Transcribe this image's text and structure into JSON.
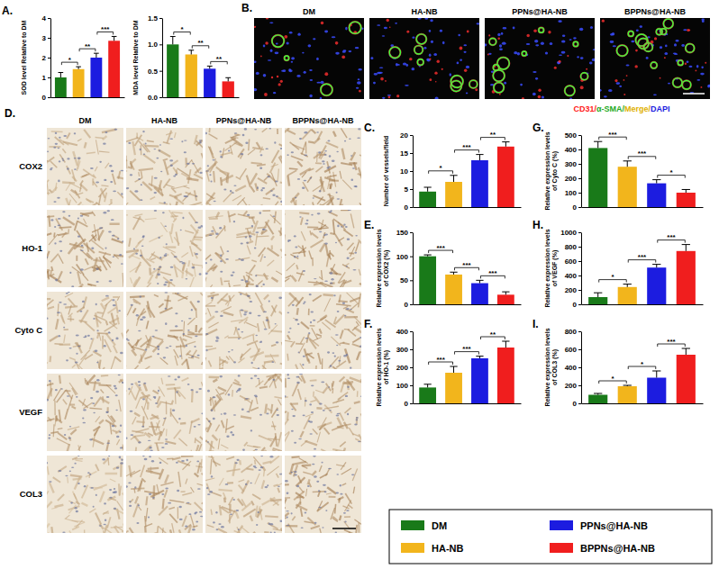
{
  "chart_data": [
    {
      "type": "bar",
      "panel": "A.",
      "y_label": "SOD level Relative to DM",
      "categories": [
        null,
        null,
        null,
        null
      ],
      "values": [
        1.0,
        1.42,
        2.0,
        2.85
      ],
      "errors": [
        0.25,
        0.12,
        0.22,
        0.22
      ],
      "colors": [
        "#197a19",
        "#f2b51c",
        "#1c1ce0",
        "#f01e1e"
      ],
      "ylim": [
        0,
        4
      ],
      "yticks": [
        0,
        1,
        2,
        3,
        4
      ],
      "tick_labels": "y",
      "annotations": [
        {
          "from": 0,
          "to": 1,
          "text": "*"
        },
        {
          "from": 1,
          "to": 2,
          "text": "**"
        },
        {
          "from": 2,
          "to": 3,
          "text": "***"
        }
      ]
    },
    {
      "type": "bar",
      "y_label": "MDA level Relative to DM",
      "categories": [
        null,
        null,
        null,
        null
      ],
      "values": [
        1.0,
        0.81,
        0.54,
        0.3
      ],
      "errors": [
        0.15,
        0.08,
        0.05,
        0.07
      ],
      "colors": [
        "#197a19",
        "#f2b51c",
        "#1c1ce0",
        "#f01e1e"
      ],
      "ylim": [
        0,
        1.5
      ],
      "yticks": [
        {
          "value": 0,
          "label": "0.0"
        },
        0.5,
        {
          "value": 1,
          "label": "1.0"
        },
        1.5
      ],
      "tick_labels": "y",
      "annotations": [
        {
          "from": 0,
          "to": 1,
          "text": "*"
        },
        {
          "from": 1,
          "to": 2,
          "text": "**"
        },
        {
          "from": 2,
          "to": 3,
          "text": "**"
        }
      ]
    },
    {
      "type": "bar",
      "panel": "C.",
      "y_label": "Number of vessels/field",
      "categories": [
        null,
        null,
        null,
        null
      ],
      "values": [
        4.3,
        7.0,
        13.0,
        16.8
      ],
      "errors": [
        1.2,
        1.8,
        1.6,
        1.3
      ],
      "colors": [
        "#197a19",
        "#f2b51c",
        "#1c1ce0",
        "#f01e1e"
      ],
      "ylim": [
        0,
        20
      ],
      "yticks": [
        0,
        5,
        10,
        15,
        20
      ],
      "tick_labels": "y",
      "annotations": [
        {
          "from": 0,
          "to": 1,
          "text": "*"
        },
        {
          "from": 1,
          "to": 2,
          "text": "***"
        },
        {
          "from": 2,
          "to": 3,
          "text": "**"
        }
      ]
    },
    {
      "type": "bar",
      "panel": "E.",
      "y_label": [
        "Relative expression levels",
        "of COX2 (%)"
      ],
      "categories": [
        null,
        null,
        null,
        null
      ],
      "values": [
        100,
        62,
        44,
        20
      ],
      "errors": [
        3,
        5,
        6,
        6
      ],
      "colors": [
        "#197a19",
        "#f2b51c",
        "#1c1ce0",
        "#f01e1e"
      ],
      "ylim": [
        0,
        150
      ],
      "yticks": [
        0,
        50,
        100,
        150
      ],
      "tick_labels": "y",
      "annotations": [
        {
          "from": 0,
          "to": 1,
          "text": "***"
        },
        {
          "from": 1,
          "to": 2,
          "text": "***"
        },
        {
          "from": 2,
          "to": 3,
          "text": "***"
        }
      ]
    },
    {
      "type": "bar",
      "panel": "F.",
      "y_label": [
        "Relative expression levels",
        "of HO-1 (%)"
      ],
      "categories": [
        null,
        null,
        null,
        null
      ],
      "values": [
        88,
        170,
        250,
        310
      ],
      "errors": [
        18,
        35,
        12,
        35
      ],
      "colors": [
        "#197a19",
        "#f2b51c",
        "#1c1ce0",
        "#f01e1e"
      ],
      "ylim": [
        0,
        400
      ],
      "yticks": [
        0,
        100,
        200,
        300,
        400
      ],
      "tick_labels": "y",
      "annotations": [
        {
          "from": 0,
          "to": 1,
          "text": "***"
        },
        {
          "from": 1,
          "to": 2,
          "text": "***"
        },
        {
          "from": 2,
          "to": 3,
          "text": "**"
        }
      ]
    },
    {
      "type": "bar",
      "panel": "G.",
      "y_label": [
        "Relative expression levels",
        "of Cyto C (%)"
      ],
      "categories": [
        null,
        null,
        null,
        null
      ],
      "values": [
        410,
        280,
        165,
        100
      ],
      "errors": [
        45,
        40,
        25,
        22
      ],
      "colors": [
        "#197a19",
        "#f2b51c",
        "#1c1ce0",
        "#f01e1e"
      ],
      "ylim": [
        0,
        500
      ],
      "yticks": [
        0,
        100,
        200,
        300,
        400,
        500
      ],
      "tick_labels": "y",
      "annotations": [
        {
          "from": 0,
          "to": 1,
          "text": "***"
        },
        {
          "from": 1,
          "to": 2,
          "text": "***"
        },
        {
          "from": 2,
          "to": 3,
          "text": "*"
        }
      ]
    },
    {
      "type": "bar",
      "panel": "H.",
      "y_label": [
        "Relative expression levels",
        "of VEGF (%)"
      ],
      "categories": [
        null,
        null,
        null,
        null
      ],
      "values": [
        100,
        240,
        510,
        740
      ],
      "errors": [
        60,
        40,
        45,
        90
      ],
      "colors": [
        "#197a19",
        "#f2b51c",
        "#1c1ce0",
        "#f01e1e"
      ],
      "ylim": [
        0,
        1000
      ],
      "yticks": [
        0,
        200,
        400,
        600,
        800,
        1000
      ],
      "tick_labels": "y",
      "annotations": [
        {
          "from": 0,
          "to": 1,
          "text": "*"
        },
        {
          "from": 1,
          "to": 2,
          "text": "***"
        },
        {
          "from": 2,
          "to": 3,
          "text": "***"
        }
      ]
    },
    {
      "type": "bar",
      "panel": "I.",
      "y_label": [
        "Relative expression levels",
        "of COL3 (%)"
      ],
      "categories": [
        null,
        null,
        null,
        null
      ],
      "values": [
        95,
        190,
        285,
        540
      ],
      "errors": [
        15,
        10,
        75,
        70
      ],
      "colors": [
        "#197a19",
        "#f2b51c",
        "#1c1ce0",
        "#f01e1e"
      ],
      "ylim": [
        0,
        800
      ],
      "yticks": [
        0,
        200,
        400,
        600,
        800
      ],
      "tick_labels": "y",
      "annotations": [
        {
          "from": 0,
          "to": 1,
          "text": "*"
        },
        {
          "from": 1,
          "to": 2,
          "text": "*"
        },
        {
          "from": 2,
          "to": 3,
          "text": "***"
        }
      ]
    }
  ],
  "figures": {
    "B": {
      "panel": "B.",
      "columns": [
        "DM",
        "HA-NB",
        "PPNs@HA-NB",
        "BPPNs@HA-NB"
      ],
      "caption": [
        {
          "text": "CD31/",
          "color": "#ff2020"
        },
        {
          "text": "α-SMA/",
          "color": "#1faa1f"
        },
        {
          "text": "Merge/",
          "color": "#e0b000"
        },
        {
          "text": "DAPI",
          "color": "#1c1ce0"
        }
      ]
    },
    "D": {
      "panel": "D.",
      "columns": [
        "DM",
        "HA-NB",
        "PPNs@HA-NB",
        "BPPNs@HA-NB"
      ],
      "rows": [
        "COX2",
        "HO-1",
        "Cyto C",
        "VEGF",
        "COL3"
      ]
    }
  },
  "legend_entries": [
    {
      "name": "DM",
      "color": "#197a19"
    },
    {
      "name": "HA-NB",
      "color": "#f2b51c"
    },
    {
      "name": "PPNs@HA-NB",
      "color": "#1c1ce0"
    },
    {
      "name": "BPPNs@HA-NB",
      "color": "#f01e1e"
    }
  ]
}
